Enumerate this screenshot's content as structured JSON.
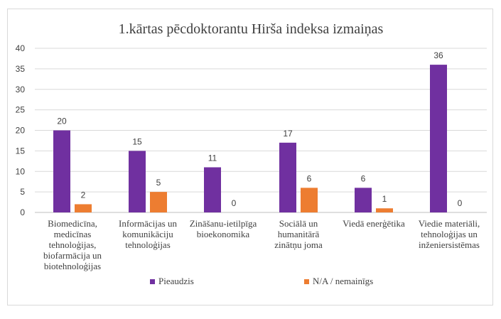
{
  "chart_data": {
    "type": "bar",
    "title": "1.kārtas pēcdoktorantu Hirša indeksa izmaiņas",
    "categories": [
      [
        "Biomedicīna,",
        "medicīnas",
        "tehnoloģijas,",
        "biofarmācija un",
        "biotehnoloģijas"
      ],
      [
        "Informācijas un",
        "komunikāciju",
        "tehnoloģijas"
      ],
      [
        "Zināšanu-ietilpīga",
        "bioekonomika"
      ],
      [
        "Sociālā un",
        "humanitārā",
        "zinātņu joma"
      ],
      [
        "Viedā enerģētika"
      ],
      [
        "Viedie materiāli,",
        "tehnoloģijas un",
        "inženiersistēmas"
      ]
    ],
    "series": [
      {
        "name": "Pieaudzis",
        "color": "#7030a0",
        "values": [
          20,
          15,
          11,
          17,
          6,
          36
        ]
      },
      {
        "name": "N/A /  nemainīgs",
        "color": "#ed7d31",
        "values": [
          2,
          5,
          0,
          6,
          1,
          0
        ]
      }
    ],
    "yticks": [
      "0",
      "5",
      "10",
      "15",
      "20",
      "25",
      "30",
      "35",
      "40"
    ],
    "ylim": [
      0,
      40
    ],
    "grid": true,
    "legend_position": "bottom"
  }
}
